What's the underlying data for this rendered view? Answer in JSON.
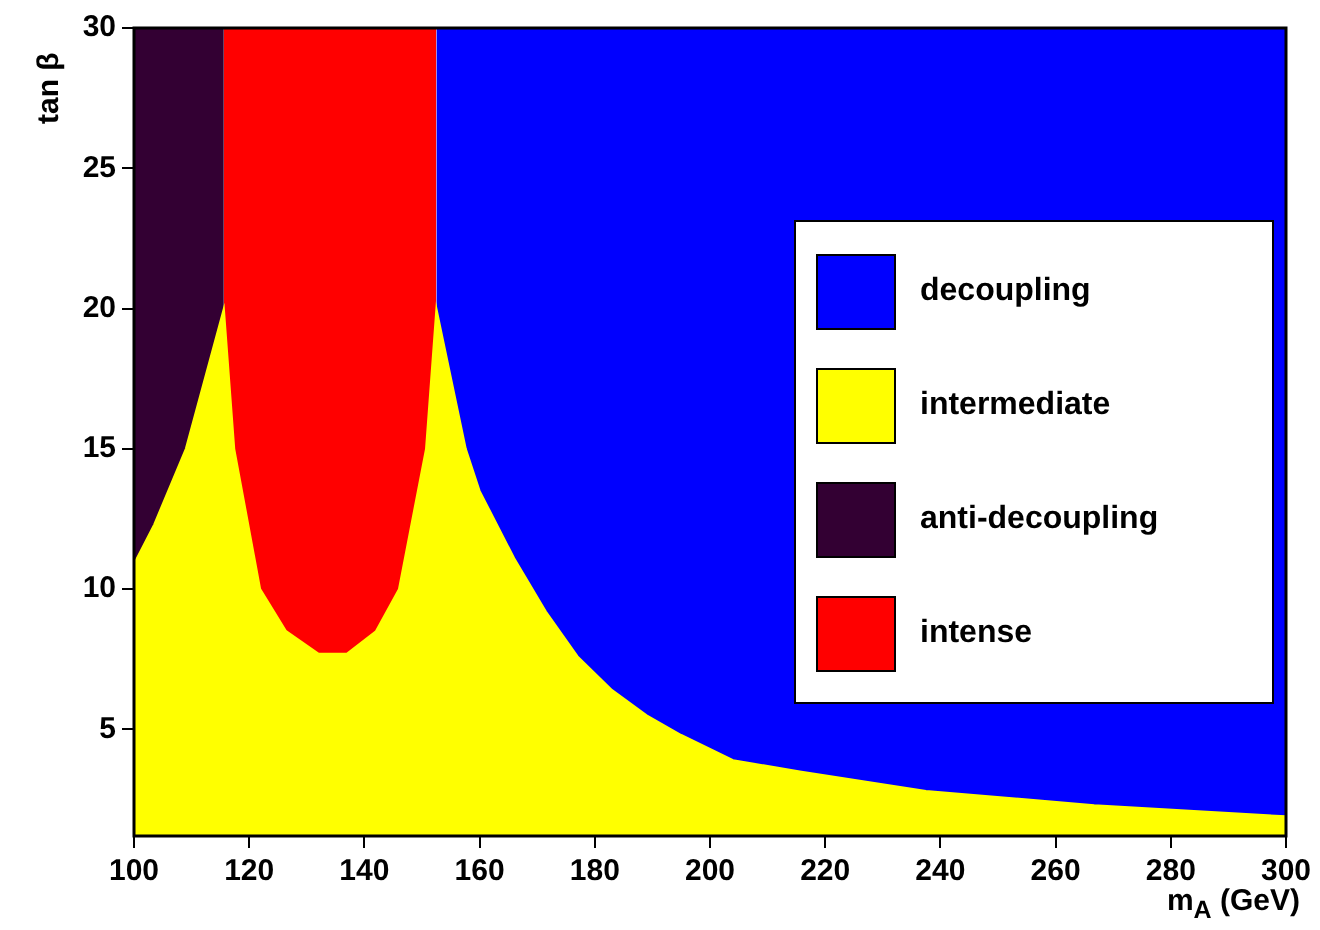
{
  "chart_data": {
    "type": "area",
    "xlabel": "m$_{A}$ (GeV)",
    "ylabel": "tan β",
    "xlim": [
      100,
      300
    ],
    "ylim": [
      1.2,
      30
    ],
    "xticks": [
      100,
      120,
      140,
      160,
      180,
      200,
      220,
      240,
      260,
      280,
      300
    ],
    "yticks": [
      5,
      10,
      15,
      20,
      25,
      30
    ],
    "legend": "right",
    "series": [
      {
        "name": "decoupling",
        "color": "#0000ff",
        "x": [
          152.5,
          300
        ],
        "values": [
          30,
          30
        ]
      },
      {
        "name": "intermediate",
        "color": "#ffff00",
        "x": [
          100,
          103.5,
          109,
          115.6,
          117.4,
          121.9,
          126.4,
          132,
          137,
          142,
          146,
          150.7,
          152.5,
          157.6,
          160,
          166,
          171.5,
          177,
          183,
          189,
          195,
          204,
          215.6,
          237.5,
          266.7,
          300
        ],
        "values": [
          10.9,
          12.3,
          15,
          20,
          15,
          10,
          8.5,
          7.7,
          7.7,
          8.5,
          10,
          15,
          20,
          15,
          13.5,
          11.1,
          9.2,
          7.6,
          6.4,
          5.5,
          4.8,
          3.9,
          3.5,
          2.8,
          2.3,
          1.9
        ]
      },
      {
        "name": "anti-decoupling",
        "color": "#330033",
        "x": [
          100,
          115.6
        ],
        "values": [
          30,
          30
        ]
      },
      {
        "name": "intense",
        "color": "#ff0000",
        "x": [
          115.6,
          152.5
        ],
        "values": [
          30,
          30
        ]
      }
    ]
  }
}
